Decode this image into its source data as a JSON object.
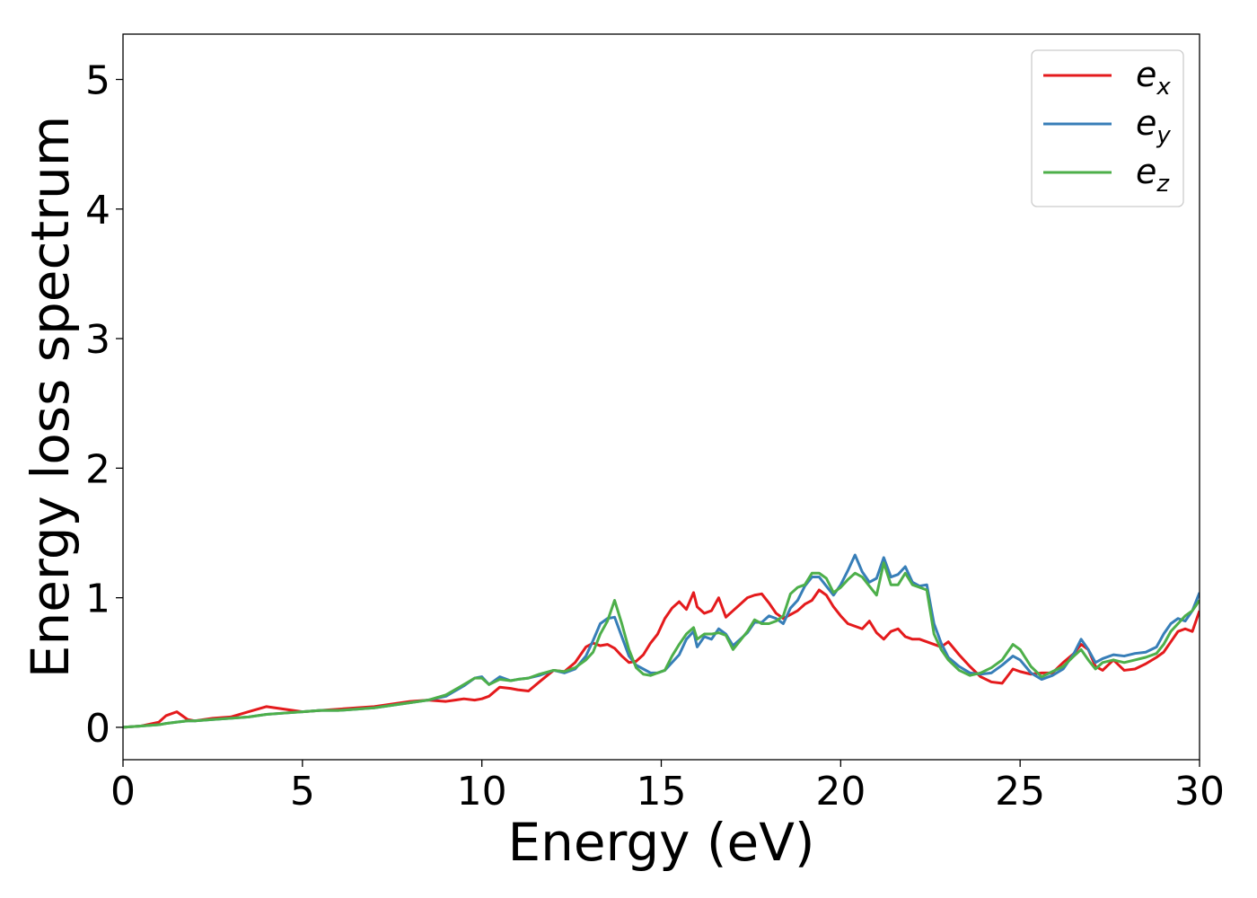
{
  "chart_data": {
    "type": "line",
    "title": "",
    "xlabel": "Energy (eV)",
    "ylabel": "Energy loss spectrum",
    "xlim": [
      0,
      30
    ],
    "ylim": [
      -0.25,
      5.35
    ],
    "xticks": [
      "0",
      "5",
      "10",
      "15",
      "20",
      "25",
      "30"
    ],
    "yticks": [
      "0",
      "1",
      "2",
      "3",
      "4",
      "5"
    ],
    "grid": false,
    "legend_position": "top-right",
    "x": [
      0,
      0.5,
      1.0,
      1.2,
      1.5,
      1.8,
      2.0,
      2.5,
      3.0,
      3.5,
      4.0,
      4.5,
      5.0,
      5.5,
      6.0,
      6.5,
      7.0,
      7.5,
      8.0,
      8.5,
      9.0,
      9.5,
      9.8,
      10.0,
      10.2,
      10.5,
      10.8,
      11.0,
      11.3,
      11.6,
      12.0,
      12.3,
      12.6,
      12.9,
      13.1,
      13.3,
      13.5,
      13.7,
      13.9,
      14.1,
      14.3,
      14.5,
      14.7,
      14.9,
      15.1,
      15.3,
      15.5,
      15.7,
      15.9,
      16.0,
      16.2,
      16.4,
      16.6,
      16.8,
      17.0,
      17.2,
      17.4,
      17.6,
      17.8,
      18.0,
      18.2,
      18.4,
      18.6,
      18.8,
      19.0,
      19.2,
      19.4,
      19.6,
      19.8,
      20.0,
      20.2,
      20.4,
      20.6,
      20.8,
      21.0,
      21.2,
      21.4,
      21.6,
      21.8,
      22.0,
      22.2,
      22.4,
      22.6,
      22.8,
      23.0,
      23.3,
      23.6,
      23.9,
      24.2,
      24.5,
      24.8,
      25.0,
      25.3,
      25.6,
      25.9,
      26.2,
      26.5,
      26.7,
      26.9,
      27.1,
      27.3,
      27.6,
      27.9,
      28.2,
      28.5,
      28.8,
      29.0,
      29.2,
      29.4,
      29.6,
      29.8,
      30.0
    ],
    "series": [
      {
        "name": "e",
        "subscript": "x",
        "color": "#e41a1c",
        "values": [
          0,
          0.01,
          0.04,
          0.09,
          0.12,
          0.06,
          0.05,
          0.07,
          0.08,
          0.12,
          0.16,
          0.14,
          0.12,
          0.13,
          0.14,
          0.15,
          0.16,
          0.18,
          0.2,
          0.21,
          0.2,
          0.22,
          0.21,
          0.22,
          0.24,
          0.31,
          0.3,
          0.29,
          0.28,
          0.35,
          0.44,
          0.43,
          0.5,
          0.62,
          0.65,
          0.63,
          0.64,
          0.61,
          0.55,
          0.5,
          0.51,
          0.56,
          0.65,
          0.72,
          0.84,
          0.92,
          0.97,
          0.91,
          1.04,
          0.93,
          0.88,
          0.9,
          1.0,
          0.85,
          0.9,
          0.95,
          1.0,
          1.02,
          1.03,
          0.96,
          0.88,
          0.84,
          0.87,
          0.9,
          0.95,
          0.98,
          1.06,
          1.02,
          0.93,
          0.86,
          0.8,
          0.78,
          0.76,
          0.82,
          0.73,
          0.68,
          0.74,
          0.76,
          0.7,
          0.68,
          0.68,
          0.66,
          0.64,
          0.62,
          0.66,
          0.56,
          0.47,
          0.39,
          0.35,
          0.34,
          0.45,
          0.43,
          0.41,
          0.42,
          0.42,
          0.5,
          0.57,
          0.64,
          0.6,
          0.47,
          0.44,
          0.52,
          0.44,
          0.45,
          0.49,
          0.54,
          0.58,
          0.66,
          0.74,
          0.76,
          0.74,
          0.9
        ]
      },
      {
        "name": "e",
        "subscript": "y",
        "color": "#377eb8",
        "values": [
          0,
          0.01,
          0.02,
          0.03,
          0.04,
          0.05,
          0.05,
          0.06,
          0.07,
          0.08,
          0.1,
          0.11,
          0.12,
          0.13,
          0.13,
          0.14,
          0.15,
          0.17,
          0.19,
          0.21,
          0.24,
          0.32,
          0.38,
          0.39,
          0.33,
          0.39,
          0.36,
          0.37,
          0.38,
          0.4,
          0.44,
          0.42,
          0.45,
          0.55,
          0.67,
          0.8,
          0.84,
          0.85,
          0.7,
          0.55,
          0.48,
          0.45,
          0.42,
          0.42,
          0.44,
          0.5,
          0.56,
          0.68,
          0.74,
          0.62,
          0.7,
          0.68,
          0.76,
          0.72,
          0.63,
          0.68,
          0.73,
          0.81,
          0.81,
          0.86,
          0.84,
          0.8,
          0.92,
          0.98,
          1.09,
          1.16,
          1.16,
          1.09,
          1.02,
          1.1,
          1.21,
          1.33,
          1.2,
          1.12,
          1.15,
          1.31,
          1.16,
          1.18,
          1.24,
          1.12,
          1.09,
          1.1,
          0.8,
          0.65,
          0.54,
          0.47,
          0.42,
          0.41,
          0.42,
          0.48,
          0.55,
          0.52,
          0.42,
          0.37,
          0.4,
          0.45,
          0.57,
          0.68,
          0.6,
          0.5,
          0.53,
          0.56,
          0.55,
          0.57,
          0.58,
          0.62,
          0.72,
          0.8,
          0.84,
          0.82,
          0.9,
          1.04
        ]
      },
      {
        "name": "e",
        "subscript": "z",
        "color": "#4daf4a",
        "values": [
          0,
          0.01,
          0.02,
          0.03,
          0.04,
          0.05,
          0.05,
          0.06,
          0.07,
          0.08,
          0.1,
          0.11,
          0.12,
          0.13,
          0.13,
          0.14,
          0.15,
          0.17,
          0.19,
          0.21,
          0.25,
          0.33,
          0.38,
          0.38,
          0.33,
          0.37,
          0.36,
          0.37,
          0.38,
          0.41,
          0.44,
          0.43,
          0.46,
          0.52,
          0.58,
          0.72,
          0.82,
          0.98,
          0.8,
          0.6,
          0.46,
          0.41,
          0.4,
          0.42,
          0.44,
          0.55,
          0.64,
          0.72,
          0.77,
          0.68,
          0.72,
          0.72,
          0.73,
          0.71,
          0.6,
          0.67,
          0.74,
          0.83,
          0.8,
          0.8,
          0.82,
          0.86,
          1.03,
          1.08,
          1.1,
          1.19,
          1.19,
          1.15,
          1.04,
          1.08,
          1.14,
          1.19,
          1.16,
          1.09,
          1.02,
          1.27,
          1.1,
          1.1,
          1.19,
          1.1,
          1.08,
          1.06,
          0.72,
          0.6,
          0.52,
          0.44,
          0.4,
          0.42,
          0.46,
          0.52,
          0.64,
          0.6,
          0.47,
          0.39,
          0.43,
          0.47,
          0.55,
          0.6,
          0.52,
          0.45,
          0.5,
          0.52,
          0.5,
          0.52,
          0.54,
          0.57,
          0.64,
          0.74,
          0.8,
          0.86,
          0.9,
          0.98
        ]
      }
    ]
  }
}
